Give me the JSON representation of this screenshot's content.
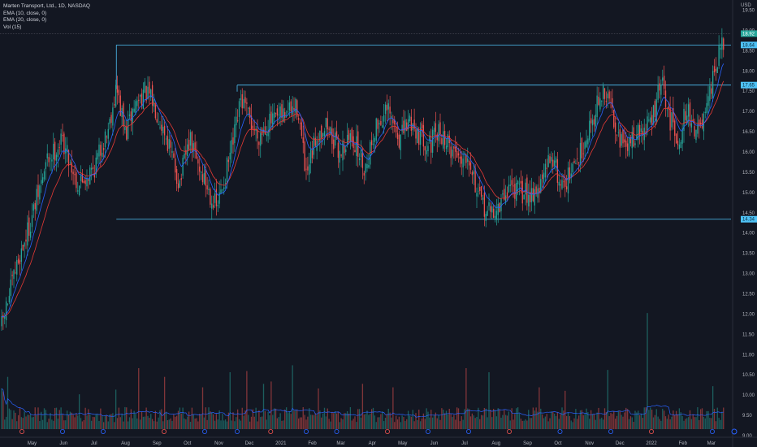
{
  "header": {
    "title": "Marten Transport, Ltd., 1D, NASDAQ",
    "indicators": [
      "EMA (10, close, 0)",
      "EMA (20, close, 0)",
      "Vol (15)"
    ],
    "currency": "USD"
  },
  "colors": {
    "background": "#131722",
    "up": "#26a69a",
    "down": "#ef5350",
    "ema10": "#2962ff",
    "ema20": "#e53935",
    "level_line": "#4fc3f7",
    "axis_text": "#b2b5be",
    "price_badge": "#26a69a"
  },
  "chart_data": {
    "type": "candlestick",
    "ylim": [
      9.0,
      19.75
    ],
    "y_ticks": [
      "19.50",
      "19.00",
      "18.50",
      "18.00",
      "17.50",
      "17.00",
      "16.50",
      "16.00",
      "15.50",
      "15.00",
      "14.50",
      "14.00",
      "13.50",
      "13.00",
      "12.50",
      "12.00",
      "11.50",
      "11.00",
      "10.50",
      "10.00",
      "9.50",
      "9.00"
    ],
    "x_ticks": [
      "May",
      "Jun",
      "Jul",
      "Aug",
      "Sep",
      "Oct",
      "Nov",
      "Dec",
      "2021",
      "Feb",
      "Mar",
      "Apr",
      "May",
      "Jun",
      "Jul",
      "Aug",
      "Sep",
      "Oct",
      "Nov",
      "Dec",
      "2022",
      "Feb",
      "Mar"
    ],
    "x_tick_days": [
      30,
      61,
      91,
      122,
      153,
      183,
      214,
      244,
      275,
      306,
      334,
      365,
      395,
      426,
      456,
      487,
      518,
      548,
      579,
      609,
      640,
      671,
      699
    ],
    "x_range_days": [
      0,
      712
    ],
    "price_anchors": [
      [
        0,
        11.7
      ],
      [
        15,
        13.2
      ],
      [
        30,
        14.4
      ],
      [
        45,
        15.8
      ],
      [
        60,
        16.3
      ],
      [
        75,
        15.2
      ],
      [
        91,
        15.6
      ],
      [
        105,
        16.6
      ],
      [
        113,
        17.6
      ],
      [
        122,
        16.4
      ],
      [
        130,
        17.1
      ],
      [
        140,
        17.5
      ],
      [
        150,
        17.2
      ],
      [
        162,
        16.4
      ],
      [
        175,
        15.2
      ],
      [
        185,
        16.3
      ],
      [
        195,
        15.6
      ],
      [
        205,
        15.0
      ],
      [
        212,
        14.6
      ],
      [
        220,
        15.4
      ],
      [
        228,
        16.2
      ],
      [
        236,
        17.3
      ],
      [
        244,
        16.8
      ],
      [
        252,
        16.4
      ],
      [
        262,
        16.7
      ],
      [
        272,
        16.8
      ],
      [
        282,
        17.0
      ],
      [
        292,
        17.1
      ],
      [
        300,
        15.3
      ],
      [
        310,
        16.4
      ],
      [
        320,
        16.7
      ],
      [
        332,
        16.0
      ],
      [
        345,
        16.4
      ],
      [
        358,
        15.6
      ],
      [
        368,
        16.6
      ],
      [
        380,
        17.0
      ],
      [
        392,
        16.3
      ],
      [
        402,
        16.8
      ],
      [
        412,
        16.4
      ],
      [
        422,
        16.2
      ],
      [
        432,
        16.5
      ],
      [
        442,
        16.1
      ],
      [
        452,
        15.9
      ],
      [
        460,
        16.0
      ],
      [
        470,
        14.8
      ],
      [
        480,
        14.5
      ],
      [
        490,
        14.6
      ],
      [
        500,
        15.2
      ],
      [
        510,
        15.0
      ],
      [
        520,
        15.0
      ],
      [
        530,
        15.1
      ],
      [
        542,
        16.0
      ],
      [
        550,
        15.2
      ],
      [
        560,
        15.4
      ],
      [
        570,
        16.0
      ],
      [
        580,
        16.7
      ],
      [
        590,
        17.4
      ],
      [
        598,
        17.3
      ],
      [
        606,
        16.6
      ],
      [
        614,
        16.0
      ],
      [
        622,
        16.4
      ],
      [
        632,
        16.5
      ],
      [
        642,
        16.9
      ],
      [
        650,
        17.8
      ],
      [
        655,
        17.0
      ],
      [
        662,
        16.6
      ],
      [
        668,
        16.3
      ],
      [
        674,
        17.1
      ],
      [
        680,
        16.7
      ],
      [
        688,
        16.5
      ],
      [
        695,
        17.0
      ],
      [
        700,
        17.7
      ],
      [
        705,
        18.3
      ],
      [
        710,
        18.6
      ]
    ],
    "volume_ylim": [
      0,
      2100000
    ],
    "volume_spikes": [
      [
        0,
        700000
      ],
      [
        2,
        650000
      ],
      [
        6,
        900000
      ],
      [
        76,
        600000
      ],
      [
        113,
        680000
      ],
      [
        135,
        1050000
      ],
      [
        160,
        900000
      ],
      [
        198,
        720000
      ],
      [
        225,
        980000
      ],
      [
        242,
        1000000
      ],
      [
        258,
        780000
      ],
      [
        265,
        820000
      ],
      [
        287,
        1100000
      ],
      [
        312,
        700000
      ],
      [
        356,
        780000
      ],
      [
        385,
        720000
      ],
      [
        458,
        1050000
      ],
      [
        480,
        980000
      ],
      [
        530,
        720000
      ],
      [
        555,
        660000
      ],
      [
        597,
        1020000
      ],
      [
        636,
        2000000
      ],
      [
        700,
        740000
      ]
    ],
    "levels": [
      {
        "price": 18.64,
        "label": "18.64",
        "bracket_start_day": 113
      },
      {
        "price": 17.65,
        "label": "17.65",
        "bracket_start_day": 232
      },
      {
        "price": 14.34,
        "label": "14.34",
        "bracket_start_day": 113
      }
    ],
    "last_price": {
      "price": 18.92,
      "label": "18.92"
    }
  }
}
